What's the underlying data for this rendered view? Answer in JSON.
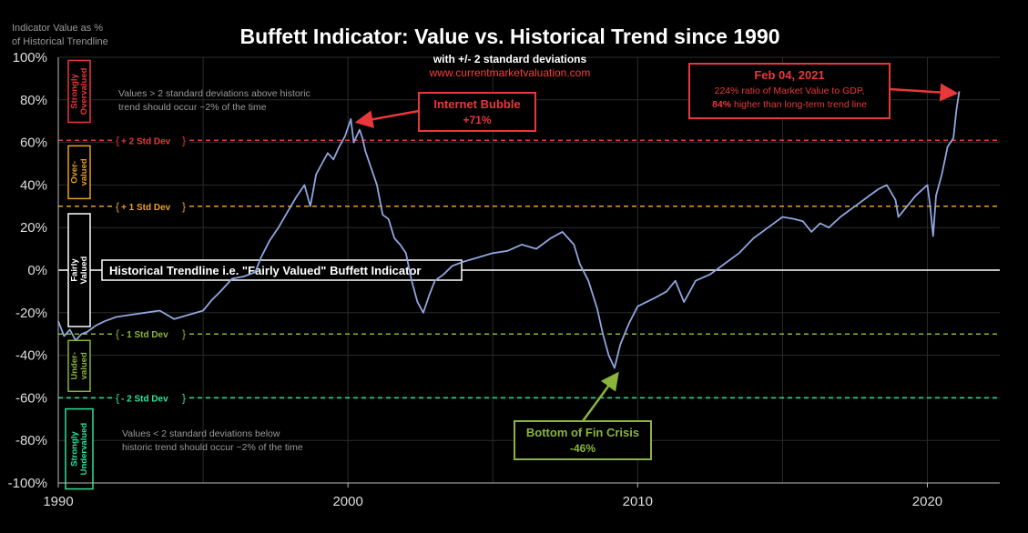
{
  "colors": {
    "background": "#000000",
    "line": "#8fa6df",
    "red": "#e8383b",
    "orange": "#e8a020",
    "green_light": "#8ab43c",
    "green": "#2fe39a",
    "white": "#ffffff",
    "grid": "#2b2b2b",
    "label_gray": "#9a9a9a",
    "link_red": "#ff3b3b"
  },
  "chart_data": {
    "type": "line",
    "title": "Buffett Indicator: Value vs. Historical Trend since 1990",
    "subtitle": "with +/- 2 standard deviations",
    "source": "www.currentmarketvaluation.com",
    "ylabel": "Indicator Value as % of Historical Trendline",
    "xlabel": "",
    "xlim": [
      1990,
      2022.5
    ],
    "ylim": [
      -100,
      100
    ],
    "x_ticks": [
      1990,
      2000,
      2010,
      2020
    ],
    "x_tick_labels": [
      "1990",
      "2000",
      "2010",
      "2020"
    ],
    "y_ticks": [
      100,
      80,
      60,
      40,
      20,
      0,
      -20,
      -40,
      -60,
      -80,
      -100
    ],
    "y_tick_labels": [
      "100%",
      "80%",
      "60%",
      "40%",
      "20%",
      "0%",
      "-20%",
      "-40%",
      "-60%",
      "-80%",
      "-100%"
    ],
    "grid": true,
    "reference_lines": [
      {
        "value": 61,
        "label": "+ 2 Std Dev",
        "color": "red"
      },
      {
        "value": 30,
        "label": "+ 1 Std Dev",
        "color": "orange"
      },
      {
        "value": 0,
        "label": "Historical Trendline i.e. \"Fairly Valued\" Buffett Indicator",
        "color": "white"
      },
      {
        "value": -30,
        "label": "- 1 Std Dev",
        "color": "green_light"
      },
      {
        "value": -60,
        "label": "- 2 Std Dev",
        "color": "green"
      }
    ],
    "zones": [
      {
        "label": "Strongly Overvalued",
        "from": 100,
        "to": 61,
        "color": "red"
      },
      {
        "label": "Over- valued",
        "from": 61,
        "to": 30,
        "color": "orange"
      },
      {
        "label": "Fairly Valued",
        "from": 30,
        "to": -30,
        "color": "white"
      },
      {
        "label": "Under- valued",
        "from": -30,
        "to": -60,
        "color": "green_light"
      },
      {
        "label": "Strongly Undervalued",
        "from": -60,
        "to": -100,
        "color": "green"
      }
    ],
    "zone_notes": {
      "upper": [
        "Values > 2 standard deviations above historic",
        "trend should occur ~2% of the time"
      ],
      "lower": [
        "Values < 2 standard deviations below",
        "historic trend should occur ~2% of the time"
      ]
    },
    "annotations": [
      {
        "id": "bubble",
        "title": "Internet Bubble",
        "lines": [
          "+71%"
        ],
        "x": 2000.2,
        "y": 71,
        "color": "red"
      },
      {
        "id": "crisis",
        "title": "Bottom of Fin Crisis",
        "lines": [
          "-46%"
        ],
        "x": 2009.2,
        "y": -46,
        "color": "green_light"
      },
      {
        "id": "latest",
        "title": "Feb 04, 2021",
        "lines": [
          "224% ratio of Market Value to GDP,",
          "84% higher than long-term trend line"
        ],
        "x": 2021.1,
        "y": 84,
        "color": "red"
      }
    ],
    "series": [
      {
        "x": [
          1990.0,
          1990.2,
          1990.4,
          1990.6,
          1990.8,
          1991.0,
          1991.3,
          1991.6,
          1992.0,
          1992.5,
          1993.0,
          1993.5,
          1994.0,
          1994.5,
          1995.0,
          1995.3,
          1995.6,
          1996.0,
          1996.4,
          1996.8,
          1997.0,
          1997.3,
          1997.6,
          1997.9,
          1998.2,
          1998.5,
          1998.7,
          1998.9,
          1999.1,
          1999.3,
          1999.5,
          1999.7,
          1999.9,
          2000.1,
          2000.2,
          2000.4,
          2000.5,
          2000.6,
          2000.8,
          2001.0,
          2001.2,
          2001.4,
          2001.6,
          2001.8,
          2002.0,
          2002.2,
          2002.4,
          2002.6,
          2002.8,
          2003.0,
          2003.3,
          2003.6,
          2004.0,
          2004.5,
          2005.0,
          2005.5,
          2006.0,
          2006.5,
          2007.0,
          2007.4,
          2007.8,
          2008.0,
          2008.3,
          2008.6,
          2008.8,
          2009.0,
          2009.2,
          2009.4,
          2009.7,
          2010.0,
          2010.3,
          2010.6,
          2011.0,
          2011.3,
          2011.6,
          2011.8,
          2012.0,
          2012.5,
          2013.0,
          2013.5,
          2014.0,
          2014.5,
          2015.0,
          2015.4,
          2015.7,
          2016.0,
          2016.3,
          2016.6,
          2017.0,
          2017.5,
          2018.0,
          2018.3,
          2018.6,
          2018.9,
          2019.0,
          2019.3,
          2019.6,
          2020.0,
          2020.1,
          2020.2,
          2020.3,
          2020.5,
          2020.7,
          2020.9,
          2021.0,
          2021.1
        ],
        "values": [
          -24,
          -31,
          -28,
          -33,
          -30,
          -29,
          -26,
          -24,
          -22,
          -21,
          -20,
          -19,
          -23,
          -21,
          -19,
          -14,
          -10,
          -4,
          -3,
          -1,
          6,
          14,
          20,
          27,
          34,
          40,
          30,
          45,
          50,
          55,
          52,
          58,
          63,
          71,
          60,
          66,
          62,
          56,
          48,
          40,
          26,
          24,
          15,
          12,
          8,
          -5,
          -15,
          -20,
          -12,
          -5,
          -2,
          2,
          4,
          6,
          8,
          9,
          12,
          10,
          15,
          18,
          12,
          3,
          -5,
          -18,
          -30,
          -40,
          -46,
          -35,
          -25,
          -17,
          -15,
          -13,
          -10,
          -5,
          -15,
          -10,
          -5,
          -2,
          3,
          8,
          15,
          20,
          25,
          24,
          23,
          18,
          22,
          20,
          25,
          30,
          35,
          38,
          40,
          33,
          25,
          30,
          35,
          40,
          30,
          16,
          35,
          45,
          58,
          62,
          75,
          84
        ]
      }
    ]
  }
}
